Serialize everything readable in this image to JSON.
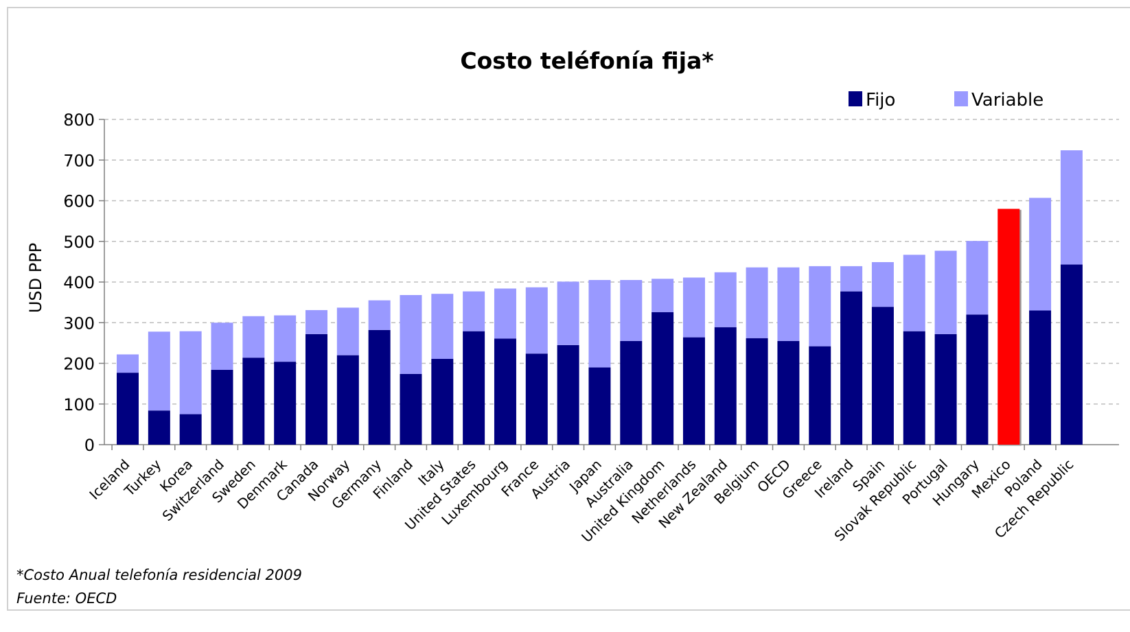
{
  "chart_data": {
    "type": "bar",
    "stacked": true,
    "title": "Costo teléfonía fija*",
    "ylabel": "USD PPP",
    "xlabel": "",
    "ylim": [
      0,
      800
    ],
    "yticks": [
      0,
      100,
      200,
      300,
      400,
      500,
      600,
      700,
      800
    ],
    "grid": "horizontal dashed",
    "legend_position": "top-right",
    "categories": [
      "Iceland",
      "Turkey",
      "Korea",
      "Switzerland",
      "Sweden",
      "Denmark",
      "Canada",
      "Norway",
      "Germany",
      "Finland",
      "Italy",
      "United States",
      "Luxembourg",
      "France",
      "Austria",
      "Japan",
      "Australia",
      "United Kingdom",
      "Netherlands",
      "New Zealand",
      "Belgium",
      "OECD",
      "Greece",
      "Ireland",
      "Spain",
      "Slovak Republic",
      "Portugal",
      "Hungary",
      "Mexico",
      "Poland",
      "Czech Republic"
    ],
    "series": [
      {
        "name": "Fijo",
        "color": "#000080",
        "values": [
          177,
          84,
          75,
          184,
          214,
          204,
          272,
          220,
          282,
          174,
          211,
          279,
          261,
          224,
          245,
          190,
          255,
          326,
          264,
          289,
          262,
          255,
          242,
          377,
          339,
          279,
          272,
          320,
          580,
          330,
          443
        ]
      },
      {
        "name": "Variable",
        "color": "#9999FF",
        "values": [
          45,
          194,
          204,
          116,
          102,
          114,
          59,
          117,
          73,
          194,
          160,
          98,
          123,
          163,
          156,
          215,
          150,
          82,
          147,
          135,
          174,
          181,
          197,
          62,
          110,
          188,
          205,
          181,
          0,
          277,
          281
        ]
      }
    ],
    "highlight": {
      "category": "Mexico",
      "color": "#FF0000"
    }
  },
  "notes": {
    "footnote": "*Costo Anual telefonía residencial 2009",
    "source": "Fuente: OECD"
  }
}
